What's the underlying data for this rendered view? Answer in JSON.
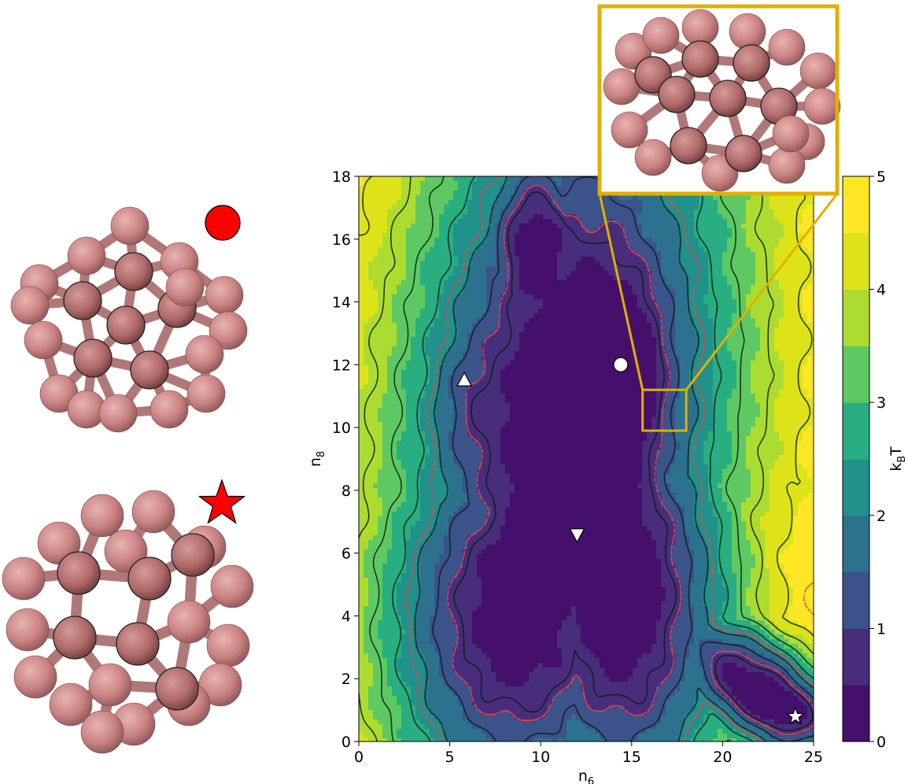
{
  "chart_data": {
    "type": "heatmap",
    "subtype": "filled-contour free-energy landscape",
    "xlabel": "n6",
    "xlabel_sub": "6",
    "xlabel_base": "n",
    "ylabel_base": "n",
    "ylabel_sub": "8",
    "xlim": [
      0,
      25
    ],
    "ylim": [
      0,
      18
    ],
    "xticks": [
      0,
      5,
      10,
      15,
      20,
      25
    ],
    "yticks": [
      0,
      2,
      4,
      6,
      8,
      10,
      12,
      14,
      16,
      18
    ],
    "colorbar": {
      "label_base": "k",
      "label_sub": "B",
      "label_tail": "T",
      "ticks": [
        0,
        1,
        2,
        3,
        4,
        5
      ],
      "levels": [
        0,
        0.5,
        1,
        1.5,
        2,
        2.5,
        3,
        3.5,
        4,
        4.5,
        5
      ],
      "colors": [
        "#45106b",
        "#472d7b",
        "#3b528b",
        "#2c728e",
        "#21918c",
        "#28ae80",
        "#5ec962",
        "#addc30",
        "#dde318",
        "#fde725"
      ],
      "colormap": "viridis"
    },
    "markers": [
      {
        "shape": "circle",
        "x": 14.4,
        "y": 12.0,
        "color": "#ffffff"
      },
      {
        "shape": "triangle-up",
        "x": 5.8,
        "y": 11.5,
        "color": "#ffffff"
      },
      {
        "shape": "triangle-down",
        "x": 12.0,
        "y": 6.6,
        "color": "#ffffff"
      },
      {
        "shape": "star",
        "x": 24.0,
        "y": 0.8,
        "color": "#ffffff"
      }
    ],
    "zoom_box": {
      "x0": 15.6,
      "x1": 18.0,
      "y0": 9.9,
      "y1": 11.2,
      "color": "#e0b000"
    },
    "contour_colors": {
      "solid": "#0b1d12",
      "dashed": "#ff3b3b"
    },
    "grid": false,
    "legend": "none"
  },
  "side_panels": {
    "top_marker": {
      "shape": "circle",
      "color": "#ff0000"
    },
    "bottom_marker": {
      "shape": "star",
      "color": "#ff0000"
    },
    "atom_color": "#c98282"
  }
}
